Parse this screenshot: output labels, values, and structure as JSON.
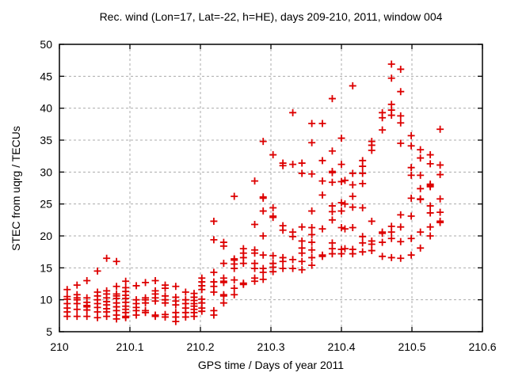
{
  "chart_data": {
    "type": "scatter",
    "title": "Rec. wind (Lon=17, Lat=-22, h=HE), days 209-210, 2011, window 004",
    "xlabel": "GPS time / Days of year 2011",
    "ylabel": "STEC from uqrg / TECUs",
    "xlim": [
      210,
      210.6
    ],
    "ylim": [
      5,
      50
    ],
    "xticks": [
      210,
      210.1,
      210.2,
      210.3,
      210.4,
      210.5,
      210.6
    ],
    "xtick_labels": [
      "210",
      "210.1",
      "210.2",
      "210.3",
      "210.4",
      "210.5",
      "210.6"
    ],
    "yticks": [
      5,
      10,
      15,
      20,
      25,
      30,
      35,
      40,
      45,
      50
    ],
    "grid": true,
    "legend": null,
    "marker": "plus",
    "marker_color": "#dd0000",
    "grid_color": "#ababab",
    "border_color": "#000000",
    "points_by_x": [
      {
        "x": 210.011,
        "ys": [
          11.6,
          10.5,
          10.1,
          9.4,
          8.7,
          8.1,
          7.4
        ]
      },
      {
        "x": 210.025,
        "ys": [
          12.3,
          10.8,
          10.3,
          10.0,
          9.4,
          8.5,
          7.4
        ]
      },
      {
        "x": 210.039,
        "ys": [
          13.0,
          10.3,
          9.6,
          9.1,
          8.9,
          8.4,
          7.4
        ]
      },
      {
        "x": 210.054,
        "ys": [
          14.5,
          11.2,
          10.6,
          10.0,
          9.4,
          8.8,
          8.1,
          7.2
        ]
      },
      {
        "x": 210.067,
        "ys": [
          16.5,
          11.4,
          10.9,
          10.3,
          9.7,
          9.2,
          8.6,
          8.1,
          7.4
        ]
      },
      {
        "x": 210.081,
        "ys": [
          16.0,
          12.1,
          10.9,
          10.6,
          10.2,
          9.5,
          8.9,
          8.3,
          7.6,
          7.0
        ]
      },
      {
        "x": 210.094,
        "ys": [
          12.9,
          11.9,
          11.3,
          10.7,
          10.2,
          9.6,
          9.0,
          8.5,
          8.0,
          7.4,
          7.2
        ]
      },
      {
        "x": 210.109,
        "ys": [
          12.2,
          10.0,
          9.4,
          8.8,
          8.3,
          7.6
        ]
      },
      {
        "x": 210.122,
        "ys": [
          12.7,
          10.3,
          10.0,
          9.5,
          8.3,
          8.0
        ]
      },
      {
        "x": 210.136,
        "ys": [
          13.0,
          11.4,
          10.9,
          10.3,
          9.8,
          7.6,
          7.4
        ]
      },
      {
        "x": 210.15,
        "ys": [
          12.3,
          11.8,
          10.6,
          10.0,
          9.5,
          7.7,
          7.3
        ]
      },
      {
        "x": 210.165,
        "ys": [
          12.1,
          10.4,
          9.8,
          9.2,
          8.0,
          7.3,
          6.6
        ]
      },
      {
        "x": 210.179,
        "ys": [
          11.2,
          10.0,
          9.4,
          8.7,
          8.0,
          7.3
        ]
      },
      {
        "x": 210.191,
        "ys": [
          11.0,
          10.4,
          9.9,
          9.4,
          9.0,
          8.5,
          8.0,
          7.4
        ]
      },
      {
        "x": 210.202,
        "ys": [
          13.4,
          12.8,
          12.2,
          11.6,
          10.1,
          9.5,
          8.7,
          8.2
        ]
      },
      {
        "x": 210.219,
        "ys": [
          22.3,
          19.4,
          14.3,
          12.8,
          12.1,
          11.2,
          8.3,
          7.6
        ]
      },
      {
        "x": 210.233,
        "ys": [
          19.0,
          18.4,
          15.7,
          13.4,
          12.9,
          12.7,
          10.8,
          10.6,
          9.5
        ]
      },
      {
        "x": 210.248,
        "ys": [
          26.2,
          16.4,
          16.2,
          15.6,
          14.9,
          13.1,
          11.8,
          10.8
        ]
      },
      {
        "x": 210.261,
        "ys": [
          18.0,
          17.3,
          16.6,
          15.7,
          12.6,
          12.4
        ]
      },
      {
        "x": 210.277,
        "ys": [
          28.6,
          21.8,
          17.8,
          17.3,
          15.7,
          14.9,
          13.4,
          12.9
        ]
      },
      {
        "x": 210.289,
        "ys": [
          34.8,
          26.1,
          25.9,
          23.9,
          20.0,
          17.0,
          14.9,
          14.3,
          13.2
        ]
      },
      {
        "x": 210.303,
        "ys": [
          32.7,
          24.4,
          23.1,
          22.9,
          16.9,
          15.7,
          15.1,
          14.4
        ]
      },
      {
        "x": 210.317,
        "ys": [
          31.4,
          31.0,
          21.6,
          20.9,
          16.6,
          16.0,
          14.9
        ]
      },
      {
        "x": 210.331,
        "ys": [
          39.3,
          31.2,
          20.6,
          19.9,
          16.3,
          14.9
        ]
      },
      {
        "x": 210.344,
        "ys": [
          31.4,
          29.8,
          21.4,
          19.2,
          18.1,
          17.3,
          16.0,
          14.7
        ]
      },
      {
        "x": 210.358,
        "ys": [
          37.6,
          34.6,
          29.7,
          23.9,
          21.3,
          20.2,
          19.0,
          17.8,
          16.6,
          15.4
        ]
      },
      {
        "x": 210.373,
        "ys": [
          37.6,
          31.8,
          28.6,
          26.4,
          21.1,
          17.0,
          16.8
        ]
      },
      {
        "x": 210.387,
        "ys": [
          41.5,
          33.3,
          30.1,
          29.9,
          28.4,
          24.7,
          23.8,
          22.5,
          18.9,
          18.0,
          17.2
        ]
      },
      {
        "x": 210.4,
        "ys": [
          35.3,
          31.2,
          28.5,
          25.2,
          23.9,
          21.3,
          17.9,
          17.2
        ]
      },
      {
        "x": 210.405,
        "ys": [
          28.7,
          25.0,
          21.1,
          18.0
        ]
      },
      {
        "x": 210.416,
        "ys": [
          43.5,
          29.8,
          28.0,
          26.2,
          24.5,
          21.3,
          17.9,
          17.2
        ]
      },
      {
        "x": 210.43,
        "ys": [
          31.8,
          30.9,
          29.8,
          28.2,
          24.4,
          19.9,
          18.9,
          17.5
        ]
      },
      {
        "x": 210.443,
        "ys": [
          34.8,
          34.2,
          33.4,
          22.3,
          19.2,
          18.7,
          17.7
        ]
      },
      {
        "x": 210.458,
        "ys": [
          39.3,
          38.5,
          36.6,
          20.6,
          20.4,
          19.0,
          16.8
        ]
      },
      {
        "x": 210.471,
        "ys": [
          46.9,
          44.7,
          40.6,
          39.7,
          38.9,
          21.5,
          20.6,
          19.6,
          16.6
        ]
      },
      {
        "x": 210.484,
        "ys": [
          46.1,
          42.6,
          38.8,
          37.7,
          34.5,
          23.3,
          21.4,
          19.1,
          16.5
        ]
      },
      {
        "x": 210.499,
        "ys": [
          35.7,
          34.1,
          30.7,
          29.5,
          25.9,
          23.1,
          19.6,
          17.0
        ]
      },
      {
        "x": 210.512,
        "ys": [
          33.5,
          32.2,
          29.5,
          27.4,
          25.8,
          25.7,
          20.6,
          18.1
        ]
      },
      {
        "x": 210.526,
        "ys": [
          32.7,
          31.3,
          28.1,
          27.9,
          27.7,
          24.7,
          23.6,
          21.4,
          20.0
        ]
      },
      {
        "x": 210.54,
        "ys": [
          36.7,
          31.1,
          29.6,
          25.8,
          23.7,
          22.3,
          22.1
        ]
      }
    ]
  }
}
